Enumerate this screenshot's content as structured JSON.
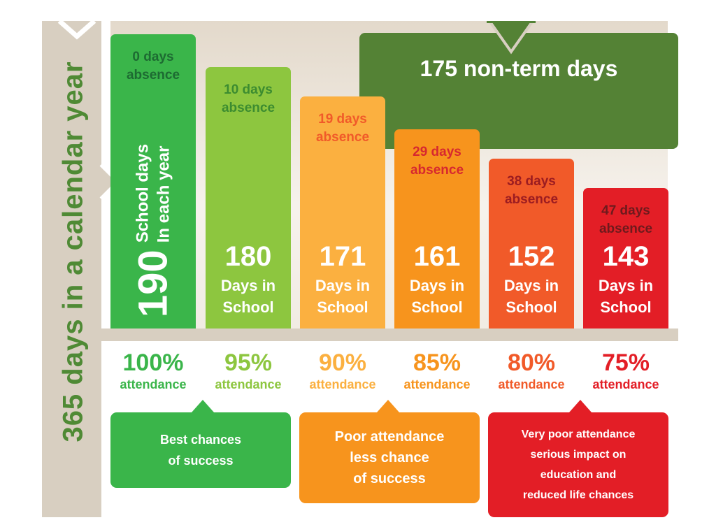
{
  "side_title": "365 days in a calendar year",
  "non_term": "175 non-term days",
  "first_bar_caption": [
    "School days",
    "In each year"
  ],
  "days_in_school_label": [
    "Days in",
    "School"
  ],
  "chart_data": {
    "type": "bar",
    "title": "",
    "categories": [
      "100%",
      "95%",
      "90%",
      "85%",
      "80%",
      "75%"
    ],
    "values": [
      190,
      180,
      171,
      161,
      152,
      143
    ],
    "absence_days": [
      0,
      10,
      19,
      29,
      38,
      47
    ],
    "absence_labels": [
      [
        "0 days",
        "absence"
      ],
      [
        "10 days",
        "absence"
      ],
      [
        "19 days",
        "absence"
      ],
      [
        "29 days",
        "absence"
      ],
      [
        "38 days",
        "absence"
      ],
      [
        "47 days",
        "absence"
      ]
    ],
    "value_labels": [
      "190",
      "180",
      "171",
      "161",
      "152",
      "143"
    ],
    "percent_labels": [
      "100%",
      "95%",
      "90%",
      "85%",
      "80%",
      "75%"
    ],
    "percent_sublabel": "attendance",
    "colors": [
      "#3ab54a",
      "#8dc63f",
      "#fbb040",
      "#f7941d",
      "#f15a29",
      "#e31e26"
    ],
    "absence_text_colors": [
      "#1d6b32",
      "#3c8c30",
      "#f15a29",
      "#d7282f",
      "#9c1c21",
      "#6e1a1d"
    ]
  },
  "callouts": [
    {
      "lines": [
        "Best chances",
        "of success"
      ],
      "color": "#3ab54a"
    },
    {
      "lines": [
        "Poor attendance",
        "less chance",
        "of success"
      ],
      "color": "#f7941d"
    },
    {
      "lines": [
        "Very poor attendance",
        "serious impact on",
        "education and",
        "reduced life chances"
      ],
      "color": "#e31e26"
    }
  ]
}
